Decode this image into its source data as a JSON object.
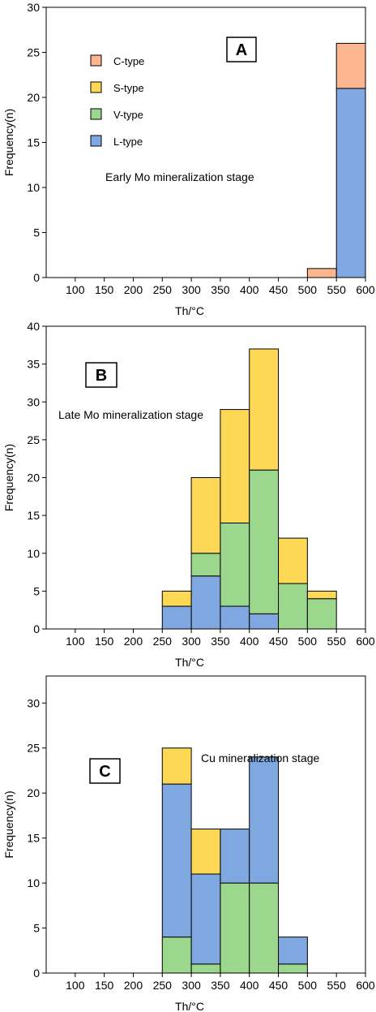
{
  "colors": {
    "C-type": "#FDB68F",
    "S-type": "#FDD855",
    "V-type": "#9BD78D",
    "L-type": "#7EA8DF"
  },
  "legend": [
    "C-type",
    "S-type",
    "V-type",
    "L-type"
  ],
  "chart_data": [
    {
      "type": "bar",
      "panel_label": "A",
      "annotation": "Early Mo mineralization stage",
      "xlabel": "Th/°C",
      "ylabel": "Frequency(n)",
      "xlim": [
        50,
        600
      ],
      "ylim": [
        0,
        30
      ],
      "x_ticks": [
        100,
        150,
        200,
        250,
        300,
        350,
        400,
        450,
        500,
        550,
        600
      ],
      "y_ticks": [
        0,
        5,
        10,
        15,
        20,
        25,
        30
      ],
      "stack_order": [
        "L-type",
        "V-type",
        "S-type",
        "C-type"
      ],
      "bins": [
        {
          "from": 500,
          "to": 550,
          "values": {
            "C-type": 1,
            "S-type": 0,
            "V-type": 0,
            "L-type": 0
          }
        },
        {
          "from": 550,
          "to": 600,
          "values": {
            "C-type": 5,
            "S-type": 0,
            "V-type": 0,
            "L-type": 21
          }
        }
      ]
    },
    {
      "type": "bar",
      "panel_label": "B",
      "annotation": "Late Mo mineralization stage",
      "xlabel": "Th/°C",
      "ylabel": "Frequency(n)",
      "xlim": [
        50,
        600
      ],
      "ylim": [
        0,
        40
      ],
      "x_ticks": [
        100,
        150,
        200,
        250,
        300,
        350,
        400,
        450,
        500,
        550,
        600
      ],
      "y_ticks": [
        0,
        5,
        10,
        15,
        20,
        25,
        30,
        35,
        40
      ],
      "stack_order": [
        "L-type",
        "V-type",
        "S-type",
        "C-type"
      ],
      "bins": [
        {
          "from": 250,
          "to": 300,
          "values": {
            "C-type": 0,
            "S-type": 2,
            "V-type": 0,
            "L-type": 3
          }
        },
        {
          "from": 300,
          "to": 350,
          "values": {
            "C-type": 0,
            "S-type": 10,
            "V-type": 3,
            "L-type": 7
          }
        },
        {
          "from": 350,
          "to": 400,
          "values": {
            "C-type": 0,
            "S-type": 15,
            "V-type": 11,
            "L-type": 3
          }
        },
        {
          "from": 400,
          "to": 450,
          "values": {
            "C-type": 0,
            "S-type": 16,
            "V-type": 19,
            "L-type": 2
          }
        },
        {
          "from": 450,
          "to": 500,
          "values": {
            "C-type": 0,
            "S-type": 6,
            "V-type": 6,
            "L-type": 0
          }
        },
        {
          "from": 500,
          "to": 550,
          "values": {
            "C-type": 0,
            "S-type": 1,
            "V-type": 4,
            "L-type": 0
          }
        }
      ]
    },
    {
      "type": "bar",
      "panel_label": "C",
      "annotation": "Cu  mineralization stage",
      "xlabel": "Th/°C",
      "ylabel": "Frequency(n)",
      "xlim": [
        50,
        600
      ],
      "ylim": [
        0,
        33
      ],
      "x_ticks": [
        100,
        150,
        200,
        250,
        300,
        350,
        400,
        450,
        500,
        550,
        600
      ],
      "y_ticks": [
        0,
        5,
        10,
        15,
        20,
        25,
        30
      ],
      "stack_order": [
        "V-type",
        "L-type",
        "S-type",
        "C-type"
      ],
      "bins": [
        {
          "from": 250,
          "to": 300,
          "values": {
            "C-type": 0,
            "S-type": 4,
            "V-type": 4,
            "L-type": 17
          }
        },
        {
          "from": 300,
          "to": 350,
          "values": {
            "C-type": 0,
            "S-type": 5,
            "V-type": 1,
            "L-type": 10
          }
        },
        {
          "from": 350,
          "to": 400,
          "values": {
            "C-type": 0,
            "S-type": 0,
            "V-type": 10,
            "L-type": 6
          }
        },
        {
          "from": 400,
          "to": 450,
          "values": {
            "C-type": 0,
            "S-type": 0,
            "V-type": 10,
            "L-type": 14
          }
        },
        {
          "from": 450,
          "to": 500,
          "values": {
            "C-type": 0,
            "S-type": 0,
            "V-type": 1,
            "L-type": 3
          }
        }
      ]
    }
  ]
}
